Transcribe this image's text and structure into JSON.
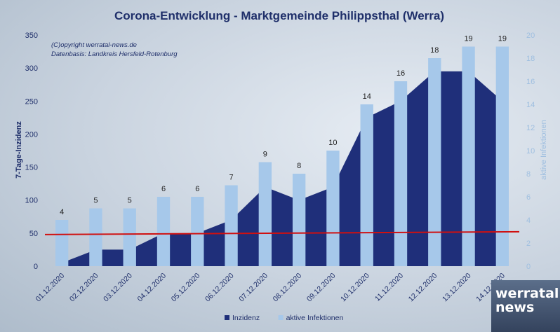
{
  "chart_data": {
    "type": "bar+area",
    "title": "Corona-Entwicklung - Marktgemeinde Philippsthal (Werra)",
    "annotations": [
      "(C)opyright werratal-news.de",
      "Datenbasis: Landkreis Hersfeld-Rotenburg"
    ],
    "categories": [
      "01.12.2020",
      "02.12.2020",
      "03.12.2020",
      "04.12.2020",
      "05.12.2020",
      "06.12.2020",
      "07.12.2020",
      "08.12.2020",
      "09.12.2020",
      "10.12.2020",
      "11.12.2020",
      "12.12.2020",
      "13.12.2020",
      "14.12.2020"
    ],
    "ylabel": "7-Tage-Inzidenz",
    "y2label": "aktive Infektionen",
    "ylim": [
      0,
      350
    ],
    "y2lim": [
      0,
      20
    ],
    "yticks": [
      0,
      50,
      100,
      150,
      200,
      250,
      300,
      350
    ],
    "y2ticks": [
      0,
      2,
      4,
      6,
      8,
      10,
      12,
      14,
      16,
      18,
      20
    ],
    "reference_line": 50,
    "series": [
      {
        "name": "Inzidenz",
        "type": "area",
        "color": "#1f2f7a",
        "axis": "left",
        "values": [
          5,
          25,
          25,
          50,
          50,
          70,
          120,
          100,
          120,
          225,
          250,
          295,
          295,
          250
        ]
      },
      {
        "name": "aktive Infektionen",
        "type": "bar",
        "color": "#a6c8ea",
        "axis": "right",
        "values": [
          4,
          5,
          5,
          6,
          6,
          7,
          9,
          8,
          10,
          14,
          16,
          18,
          19,
          19
        ]
      }
    ],
    "legend_position": "bottom-center",
    "colors": {
      "title": "#1f2f6a",
      "left_axis": "#1f2f6a",
      "right_axis": "#9fbfe0",
      "reference_line": "#d01010"
    }
  },
  "logo": {
    "line1": "werratal",
    "line2": "news"
  }
}
